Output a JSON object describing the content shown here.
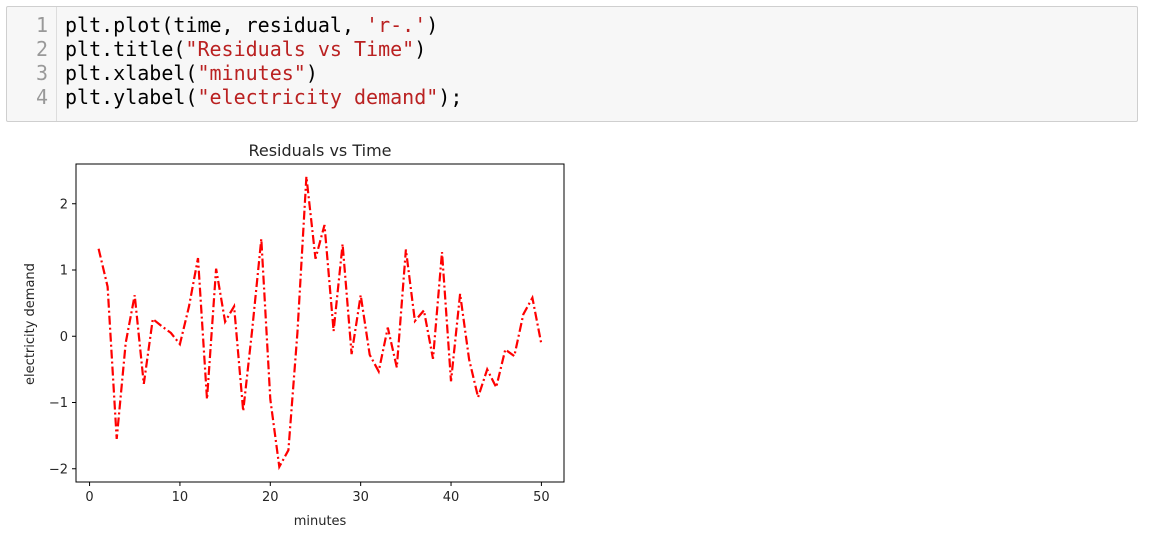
{
  "code_cell": {
    "lines": [
      {
        "number": "1",
        "parts": [
          {
            "text": "plt.plot(time, residual, ",
            "type": "code"
          },
          {
            "text": "'r-.'",
            "type": "str"
          },
          {
            "text": ")",
            "type": "code"
          }
        ]
      },
      {
        "number": "2",
        "parts": [
          {
            "text": "plt.title(",
            "type": "code"
          },
          {
            "text": "\"Residuals vs Time\"",
            "type": "str"
          },
          {
            "text": ")",
            "type": "code"
          }
        ]
      },
      {
        "number": "3",
        "parts": [
          {
            "text": "plt.xlabel(",
            "type": "code"
          },
          {
            "text": "\"minutes\"",
            "type": "str"
          },
          {
            "text": ")",
            "type": "code"
          }
        ]
      },
      {
        "number": "4",
        "parts": [
          {
            "text": "plt.ylabel(",
            "type": "code"
          },
          {
            "text": "\"electricity demand\"",
            "type": "str"
          },
          {
            "text": ");",
            "type": "code"
          }
        ]
      }
    ]
  },
  "chart_data": {
    "type": "line",
    "title": "Residuals vs Time",
    "xlabel": "minutes",
    "ylabel": "electricity demand",
    "line_style": "dash-dot",
    "color": "#ff0000",
    "xlim": [
      -1.5,
      52.5
    ],
    "ylim": [
      -2.2,
      2.6
    ],
    "xticks": [
      0,
      10,
      20,
      30,
      40,
      50
    ],
    "yticks": [
      -2,
      -1,
      0,
      1,
      2
    ],
    "ytick_labels": [
      "−2",
      "−1",
      "0",
      "1",
      "2"
    ],
    "grid": false,
    "x": [
      1,
      2,
      3,
      4,
      5,
      6,
      7,
      8,
      9,
      10,
      11,
      12,
      13,
      14,
      15,
      16,
      17,
      18,
      19,
      20,
      21,
      22,
      23,
      24,
      25,
      26,
      27,
      28,
      29,
      30,
      31,
      32,
      33,
      34,
      35,
      36,
      37,
      38,
      39,
      40,
      41,
      42,
      43,
      44,
      45,
      46,
      47,
      48,
      49,
      50
    ],
    "y": [
      1.32,
      0.75,
      -1.55,
      -0.1,
      0.62,
      -0.72,
      0.26,
      0.15,
      0.05,
      -0.12,
      0.45,
      1.18,
      -0.95,
      1.02,
      0.22,
      0.45,
      -1.13,
      0.1,
      1.47,
      -0.95,
      -1.97,
      -1.72,
      0.05,
      2.41,
      1.17,
      1.68,
      0.08,
      1.39,
      -0.27,
      0.62,
      -0.28,
      -0.53,
      0.13,
      -0.47,
      1.31,
      0.23,
      0.39,
      -0.34,
      1.27,
      -0.68,
      0.64,
      -0.35,
      -0.92,
      -0.5,
      -0.77,
      -0.2,
      -0.3,
      0.33,
      0.58,
      -0.12
    ]
  }
}
